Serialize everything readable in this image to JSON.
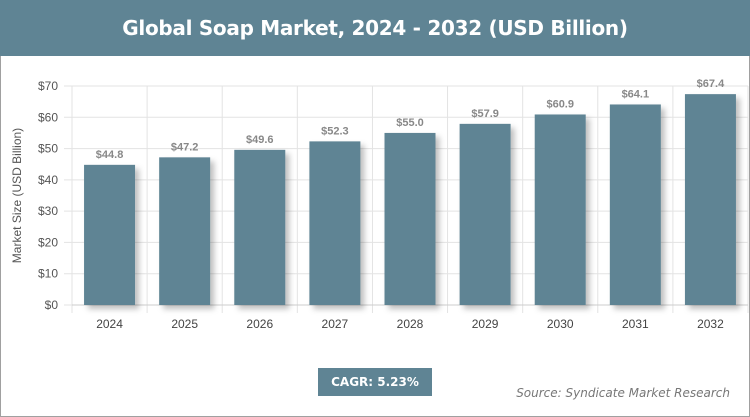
{
  "chart_data": {
    "type": "bar",
    "title": "Global Soap Market, 2024 - 2032 (USD Billion)",
    "xlabel": "",
    "ylabel": "Market Size (USD Billion)",
    "categories": [
      "2024",
      "2025",
      "2026",
      "2027",
      "2028",
      "2029",
      "2030",
      "2031",
      "2032"
    ],
    "values": [
      44.8,
      47.2,
      49.6,
      52.3,
      55.0,
      57.9,
      60.9,
      64.1,
      67.4
    ],
    "data_labels": [
      "$44.8",
      "$47.2",
      "$49.6",
      "$52.3",
      "$55.0",
      "$57.9",
      "$60.9",
      "$64.1",
      "$67.4"
    ],
    "ylim": [
      0,
      70
    ],
    "yticks": [
      "$0",
      "$10",
      "$20",
      "$30",
      "$40",
      "$50",
      "$60",
      "$70"
    ],
    "grid": true,
    "bar_color": "#5f8494"
  },
  "cagr_label": "CAGR: 5.23%",
  "source": "Source: Syndicate Market Research"
}
